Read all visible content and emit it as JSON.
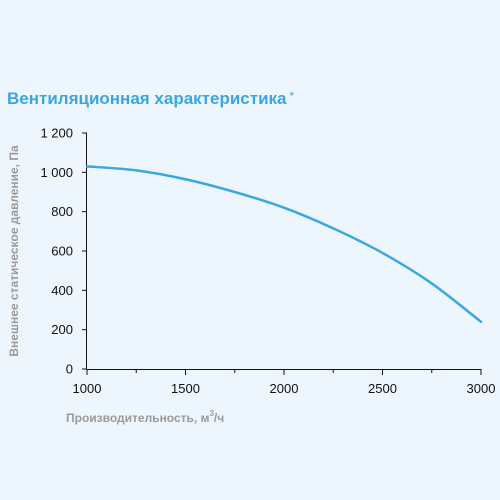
{
  "chart_data": {
    "type": "line",
    "title": "Вентиляционная характеристика",
    "title_mark": "*",
    "xlabel_main": "Производительность, м",
    "xlabel_sup": "3",
    "xlabel_tail": "/ч",
    "ylabel": "Внешнее статическое давление, Па",
    "xlim": [
      1000,
      3000
    ],
    "ylim": [
      0,
      1200
    ],
    "xticks": [
      1000,
      1500,
      2000,
      2500,
      3000
    ],
    "xtick_labels": [
      "1000",
      "1500",
      "2000",
      "2500",
      "3000"
    ],
    "yticks": [
      0,
      200,
      400,
      600,
      800,
      1000,
      1200
    ],
    "ytick_labels": [
      "0",
      "200",
      "400",
      "600",
      "800",
      "1 000",
      "1 200"
    ],
    "grid": false,
    "series": [
      {
        "color": "#3aa8de",
        "x": [
          1000,
          1250,
          1500,
          1750,
          2000,
          2250,
          2500,
          2750,
          3000
        ],
        "y": [
          1030,
          1010,
          965,
          900,
          820,
          715,
          590,
          435,
          240
        ]
      }
    ]
  }
}
